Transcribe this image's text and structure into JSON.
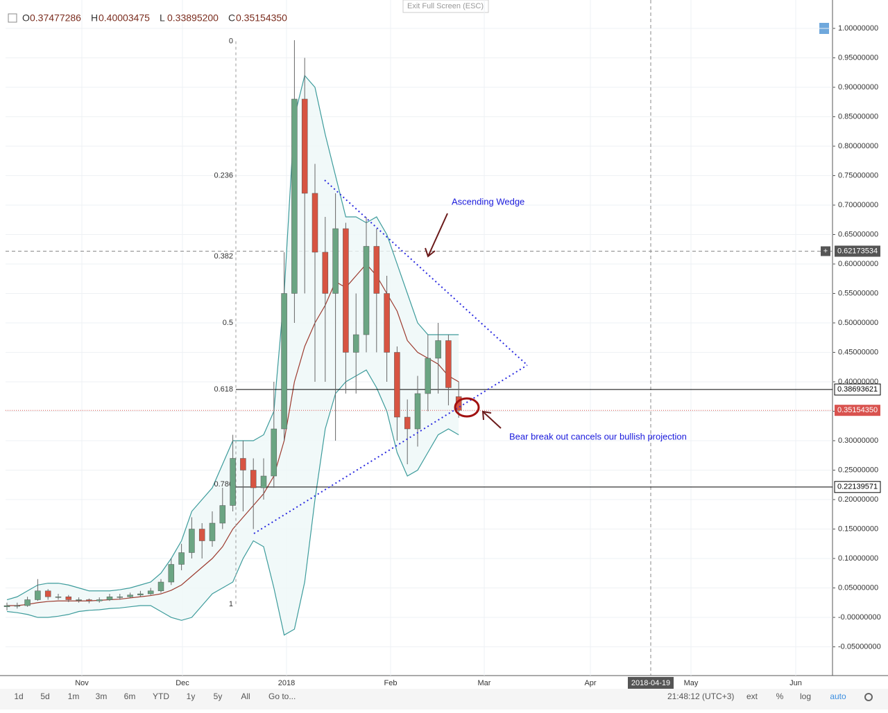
{
  "toolbar": {
    "exit": "Exit Full Screen (ESC)",
    "ranges": [
      "1d",
      "5d",
      "1m",
      "3m",
      "6m",
      "YTD",
      "1y",
      "5y",
      "All"
    ],
    "goto": "Go to...",
    "clock": "21:48:12 (UTC+3)",
    "options": [
      "ext",
      "%",
      "log",
      "auto"
    ]
  },
  "chart_data": {
    "type": "candlestick",
    "ohlc_header": [
      {
        "key": "O",
        "value": 0.37477286,
        "label": "0.37477286"
      },
      {
        "key": "H",
        "value": 0.40003475,
        "label": "0.40003475"
      },
      {
        "key": "L",
        "value": 0.338952,
        "label": "0.33895200"
      },
      {
        "key": "C",
        "value": 0.3515435,
        "label": "0.35154350"
      }
    ],
    "x_labels": [
      "Nov",
      "Dec",
      "2018",
      "Feb",
      "Mar",
      "Apr",
      "May",
      "Jun"
    ],
    "crosshair_date": "2018-04-19",
    "open": [
      0.018,
      0.02,
      0.02,
      0.03,
      0.045,
      0.035,
      0.035,
      0.03,
      0.03,
      0.028,
      0.03,
      0.035,
      0.035,
      0.038,
      0.04,
      0.045,
      0.06,
      0.09,
      0.11,
      0.15,
      0.13,
      0.16,
      0.19,
      0.27,
      0.25,
      0.22,
      0.24,
      0.32,
      0.55,
      0.88,
      0.72,
      0.62,
      0.55,
      0.66,
      0.45,
      0.48,
      0.63,
      0.55,
      0.45,
      0.34,
      0.32,
      0.38,
      0.44,
      0.47,
      0.37477286
    ],
    "high": [
      0.025,
      0.025,
      0.035,
      0.065,
      0.048,
      0.04,
      0.038,
      0.034,
      0.032,
      0.034,
      0.04,
      0.04,
      0.042,
      0.045,
      0.05,
      0.065,
      0.1,
      0.125,
      0.17,
      0.16,
      0.18,
      0.22,
      0.31,
      0.3,
      0.27,
      0.27,
      0.4,
      0.62,
      0.98,
      0.95,
      0.77,
      0.68,
      0.72,
      0.67,
      0.55,
      0.68,
      0.66,
      0.58,
      0.46,
      0.37,
      0.41,
      0.48,
      0.5,
      0.48,
      0.40003475
    ],
    "low": [
      0.012,
      0.015,
      0.018,
      0.028,
      0.03,
      0.03,
      0.026,
      0.025,
      0.024,
      0.025,
      0.028,
      0.03,
      0.033,
      0.035,
      0.038,
      0.042,
      0.055,
      0.08,
      0.1,
      0.1,
      0.12,
      0.15,
      0.18,
      0.18,
      0.15,
      0.2,
      0.22,
      0.3,
      0.5,
      0.55,
      0.4,
      0.4,
      0.3,
      0.38,
      0.38,
      0.45,
      0.45,
      0.4,
      0.3,
      0.26,
      0.29,
      0.35,
      0.38,
      0.36,
      0.338952
    ],
    "close": [
      0.02,
      0.02,
      0.03,
      0.045,
      0.035,
      0.035,
      0.03,
      0.03,
      0.028,
      0.03,
      0.035,
      0.035,
      0.038,
      0.04,
      0.045,
      0.06,
      0.09,
      0.11,
      0.15,
      0.13,
      0.16,
      0.19,
      0.27,
      0.25,
      0.22,
      0.24,
      0.32,
      0.55,
      0.88,
      0.72,
      0.62,
      0.55,
      0.66,
      0.45,
      0.48,
      0.63,
      0.55,
      0.45,
      0.34,
      0.32,
      0.38,
      0.44,
      0.47,
      0.39,
      0.3515435
    ],
    "ma": [
      0.02,
      0.02,
      0.022,
      0.025,
      0.027,
      0.028,
      0.028,
      0.028,
      0.028,
      0.029,
      0.03,
      0.031,
      0.033,
      0.035,
      0.037,
      0.04,
      0.046,
      0.055,
      0.07,
      0.085,
      0.1,
      0.12,
      0.15,
      0.17,
      0.19,
      0.21,
      0.24,
      0.3,
      0.4,
      0.46,
      0.5,
      0.53,
      0.57,
      0.56,
      0.58,
      0.6,
      0.58,
      0.55,
      0.52,
      0.47,
      0.45,
      0.44,
      0.43,
      0.41,
      0.4
    ],
    "bollinger_upper": [
      0.03,
      0.035,
      0.045,
      0.055,
      0.058,
      0.058,
      0.055,
      0.05,
      0.045,
      0.045,
      0.045,
      0.047,
      0.05,
      0.055,
      0.06,
      0.075,
      0.1,
      0.13,
      0.18,
      0.2,
      0.22,
      0.26,
      0.3,
      0.3,
      0.3,
      0.31,
      0.35,
      0.55,
      0.85,
      0.92,
      0.9,
      0.82,
      0.75,
      0.68,
      0.68,
      0.67,
      0.68,
      0.65,
      0.6,
      0.55,
      0.5,
      0.48,
      0.48,
      0.48,
      0.48
    ],
    "bollinger_lower": [
      0.01,
      0.008,
      0.005,
      0.0,
      0.0,
      0.002,
      0.005,
      0.01,
      0.012,
      0.013,
      0.015,
      0.016,
      0.018,
      0.02,
      0.02,
      0.01,
      0.0,
      -0.005,
      0.0,
      0.02,
      0.04,
      0.05,
      0.06,
      0.1,
      0.13,
      0.12,
      0.05,
      -0.03,
      -0.02,
      0.06,
      0.2,
      0.32,
      0.38,
      0.4,
      0.41,
      0.42,
      0.39,
      0.35,
      0.28,
      0.24,
      0.25,
      0.28,
      0.31,
      0.32,
      0.31
    ],
    "ylim": [
      -0.0988,
      1.0482
    ],
    "yticks": [
      {
        "value": -0.05,
        "label": "-0.05000000"
      },
      {
        "value": 0,
        "label": "-0.00000000"
      },
      {
        "value": 0.05,
        "label": "0.05000000"
      },
      {
        "value": 0.1,
        "label": "0.10000000"
      },
      {
        "value": 0.15,
        "label": "0.15000000"
      },
      {
        "value": 0.2,
        "label": "0.20000000"
      },
      {
        "value": 0.25,
        "label": "0.25000000"
      },
      {
        "value": 0.3,
        "label": "0.30000000"
      },
      {
        "value": 0.35,
        "label": "0.35000000"
      },
      {
        "value": 0.4,
        "label": "0.40000000"
      },
      {
        "value": 0.45,
        "label": "0.45000000"
      },
      {
        "value": 0.5,
        "label": "0.50000000"
      },
      {
        "value": 0.55,
        "label": "0.55000000"
      },
      {
        "value": 0.6,
        "label": "0.60000000"
      },
      {
        "value": 0.65,
        "label": "0.65000000"
      },
      {
        "value": 0.7,
        "label": "0.70000000"
      },
      {
        "value": 0.75,
        "label": "0.75000000"
      },
      {
        "value": 0.8,
        "label": "0.80000000"
      },
      {
        "value": 0.85,
        "label": "0.85000000"
      },
      {
        "value": 0.9,
        "label": "0.90000000"
      },
      {
        "value": 0.95,
        "label": "0.95000000"
      },
      {
        "value": 1,
        "label": "1.00000000"
      }
    ],
    "price_lines": [
      {
        "value": 0.38693621,
        "label": "0.38693621"
      },
      {
        "value": 0.22139571,
        "label": "0.22139571"
      }
    ],
    "last_price": {
      "value": 0.3515435,
      "label": "0.35154350"
    },
    "crosshair_price": {
      "value": 0.62173534,
      "label": "0.62173534"
    },
    "fib_levels": [
      {
        "level": 0,
        "price": 0.978
      },
      {
        "level": 0.236,
        "price": 0.75
      },
      {
        "level": 0.382,
        "price": 0.613
      },
      {
        "level": 0.5,
        "price": 0.5
      },
      {
        "level": 0.618,
        "price": 0.387
      },
      {
        "level": 0.786,
        "price": 0.226
      },
      {
        "level": 1,
        "price": 0.022
      }
    ],
    "annotations": [
      "Ascending Wedge",
      "Bear break out cancels our bullish projection"
    ],
    "colors": {
      "up": "#6ba583",
      "down": "#d75442",
      "band": "#3c9b9b",
      "ma": "#9c3a2e",
      "last": "#d9534f"
    },
    "grid": true
  }
}
